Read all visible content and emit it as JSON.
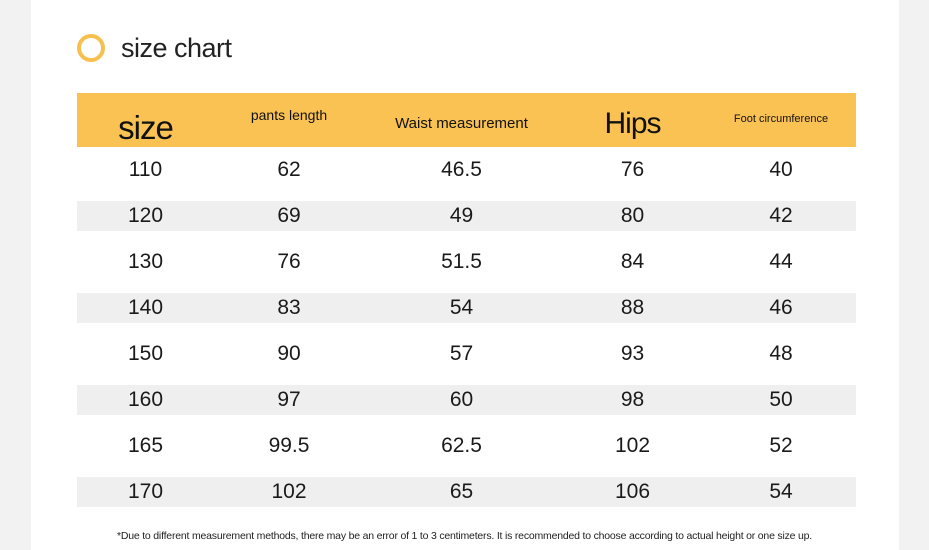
{
  "title": "size chart",
  "table": {
    "headers": [
      "size",
      "pants length",
      "Waist measurement",
      "Hips",
      "Foot circumference"
    ],
    "rows": [
      [
        "110",
        "62",
        "46.5",
        "76",
        "40"
      ],
      [
        "120",
        "69",
        "49",
        "80",
        "42"
      ],
      [
        "130",
        "76",
        "51.5",
        "84",
        "44"
      ],
      [
        "140",
        "83",
        "54",
        "88",
        "46"
      ],
      [
        "150",
        "90",
        "57",
        "93",
        "48"
      ],
      [
        "160",
        "97",
        "60",
        "98",
        "50"
      ],
      [
        "165",
        "99.5",
        "62.5",
        "102",
        "52"
      ],
      [
        "170",
        "102",
        "65",
        "106",
        "54"
      ]
    ]
  },
  "footnote": "*Due to different measurement methods, there may be an error of 1 to 3 centimeters. It is recommended to choose according to actual height or one size up.",
  "colors": {
    "header_bg": "#f9c253",
    "ring": "#f6c04f",
    "stripe": "#efefef"
  }
}
